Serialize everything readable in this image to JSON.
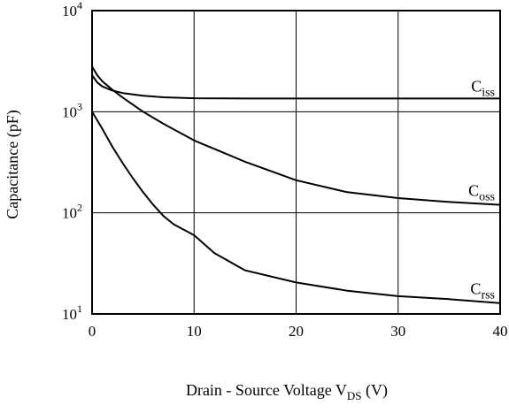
{
  "chart_data": {
    "type": "line",
    "title": "",
    "xlabel": {
      "text": "Drain - Source Voltage  V",
      "sub": "DS",
      "unit": " (V)"
    },
    "ylabel": "Capacitance (pF)",
    "xlim": [
      0,
      40
    ],
    "ylim": [
      10,
      10000
    ],
    "yscale": "log",
    "grid": true,
    "x_ticks": [
      0,
      10,
      20,
      30,
      40
    ],
    "x_tick_labels": [
      "0",
      "10",
      "20",
      "30",
      "40"
    ],
    "y_ticks": [
      {
        "value": 10,
        "base": "10",
        "exp": "1"
      },
      {
        "value": 100,
        "base": "10",
        "exp": "2"
      },
      {
        "value": 1000,
        "base": "10",
        "exp": "3"
      },
      {
        "value": 10000,
        "base": "10",
        "exp": "4"
      }
    ],
    "series": [
      {
        "name": "Ciss",
        "label_main": "C",
        "label_sub": "iss",
        "x": [
          0,
          0.5,
          1,
          2,
          3,
          5,
          7,
          10,
          15,
          20,
          25,
          30,
          35,
          40
        ],
        "y": [
          2300,
          1950,
          1780,
          1620,
          1530,
          1440,
          1390,
          1360,
          1350,
          1350,
          1350,
          1350,
          1350,
          1350
        ]
      },
      {
        "name": "Coss",
        "label_main": "C",
        "label_sub": "oss",
        "x": [
          0,
          0.5,
          1,
          2,
          3,
          5,
          7,
          10,
          15,
          20,
          25,
          30,
          35,
          40
        ],
        "y": [
          2800,
          2300,
          2000,
          1650,
          1380,
          1000,
          760,
          520,
          320,
          210,
          160,
          140,
          128,
          120
        ]
      },
      {
        "name": "Crss",
        "label_main": "C",
        "label_sub": "rss",
        "x": [
          0,
          1,
          2,
          3,
          4,
          5,
          6,
          7,
          8,
          10,
          12,
          15,
          20,
          25,
          30,
          35,
          40
        ],
        "y": [
          1000,
          680,
          450,
          310,
          220,
          160,
          120,
          93,
          77,
          60,
          40,
          27,
          20.5,
          17,
          15,
          14,
          12.8
        ]
      }
    ]
  }
}
